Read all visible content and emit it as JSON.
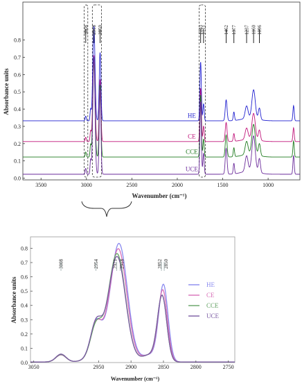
{
  "chart_data": [
    {
      "type": "line",
      "xlabel": "Wavenumber (cm⁻¹)",
      "ylabel": "Absorbance units",
      "xlim": [
        3700,
        650
      ],
      "ylim": [
        -0.01,
        1.02
      ],
      "x_ticks": [
        "3500",
        "3000",
        "2500",
        "2000",
        "1500",
        "1000"
      ],
      "y_ticks": [
        "0.0",
        "0.1",
        "0.2",
        "0.3",
        "0.4",
        "0.5",
        "0.6",
        "0.7",
        "0.8"
      ],
      "band_labels": [
        "3008",
        "2918",
        "2850",
        "1743",
        "1711",
        "1462",
        "1377",
        "1237",
        "1160",
        "1096"
      ],
      "highlight_boxes": [
        [
          3025,
          2985
        ],
        [
          2935,
          2835
        ],
        [
          1760,
          1690
        ]
      ],
      "zoom_range": [
        3050,
        2740
      ],
      "series": [
        {
          "name": "HE",
          "color": "#1f1fcf",
          "baseline": 0.33,
          "scale": 0.55
        },
        {
          "name": "CE",
          "color": "#c0147a",
          "baseline": 0.21,
          "scale": 0.5
        },
        {
          "name": "CCE",
          "color": "#1e7a1e",
          "baseline": 0.12,
          "scale": 0.58
        },
        {
          "name": "UCE",
          "color": "#6a2a9a",
          "baseline": 0.02,
          "scale": 0.68
        }
      ],
      "peaks": [
        {
          "x": 3008,
          "height": 0.05,
          "width": 9
        },
        {
          "x": 2954,
          "height": 0.12,
          "width": 9
        },
        {
          "x": 2918,
          "height": 1.0,
          "width": 17
        },
        {
          "x": 2850,
          "height": 0.72,
          "width": 13
        },
        {
          "x": 1743,
          "height": 0.62,
          "width": 11
        },
        {
          "x": 1711,
          "height": 0.18,
          "width": 10
        },
        {
          "x": 1462,
          "height": 0.22,
          "width": 14
        },
        {
          "x": 1377,
          "height": 0.09,
          "width": 10
        },
        {
          "x": 1237,
          "height": 0.13,
          "width": 22
        },
        {
          "x": 1160,
          "height": 0.3,
          "width": 26
        },
        {
          "x": 1096,
          "height": 0.12,
          "width": 16
        },
        {
          "x": 720,
          "height": 0.16,
          "width": 10
        }
      ]
    },
    {
      "type": "line",
      "xlabel": "Wavenumber (cm⁻¹)",
      "ylabel": "Absorbance units",
      "xlim": [
        3055,
        2740
      ],
      "ylim": [
        0,
        0.88
      ],
      "x_ticks": [
        "3050",
        "2950",
        "2900",
        "2850",
        "2800",
        "2750"
      ],
      "x_tick_values": [
        3050,
        2950,
        2900,
        2850,
        2800,
        2750
      ],
      "y_ticks": [
        "0.0",
        "0.1",
        "0.2",
        "0.3",
        "0.4",
        "0.5",
        "0.6",
        "0.7",
        "0.8"
      ],
      "band_labels": [
        "3008",
        "2954",
        "2921",
        "2918",
        "2852",
        "2850"
      ],
      "legend": "right",
      "series": [
        {
          "name": "HE",
          "color": "#8a8aef",
          "peak_heights": [
            0.05,
            0.22,
            0.8,
            0.58
          ],
          "peak_positions": [
            3008,
            2954,
            2918,
            2850
          ]
        },
        {
          "name": "CE",
          "color": "#d870b8",
          "peak_heights": [
            0.05,
            0.21,
            0.76,
            0.54
          ],
          "peak_positions": [
            3008,
            2954,
            2919,
            2851
          ]
        },
        {
          "name": "CCE",
          "color": "#64a264",
          "peak_heights": [
            0.052,
            0.2,
            0.72,
            0.5
          ],
          "peak_positions": [
            3008,
            2954,
            2921,
            2852
          ]
        },
        {
          "name": "UCE",
          "color": "#7a5aa2",
          "peak_heights": [
            0.055,
            0.22,
            0.7,
            0.5
          ],
          "peak_positions": [
            3008,
            2954,
            2921,
            2852
          ]
        }
      ]
    }
  ]
}
